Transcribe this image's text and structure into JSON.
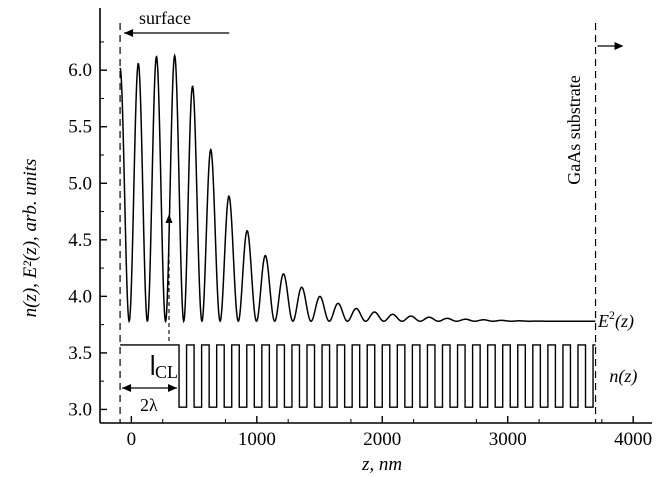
{
  "chart_data": {
    "type": "line",
    "xlabel": "z, nm",
    "ylabel": "n(z), E²(z), arb. units",
    "xlim": [
      -250,
      4150
    ],
    "ylim": [
      2.88,
      6.55
    ],
    "x_ticks": [
      0,
      1000,
      2000,
      3000,
      4000
    ],
    "x_tick_labels": [
      "0",
      "1000",
      "2000",
      "3000",
      "4000"
    ],
    "y_ticks": [
      3.0,
      3.5,
      4.0,
      4.5,
      5.0,
      5.5,
      6.0
    ],
    "y_tick_labels": [
      "3.0",
      "3.5",
      "4.0",
      "4.5",
      "5.0",
      "5.5",
      "6.0"
    ],
    "grid": false,
    "series": [
      {
        "name": "E²(z)",
        "label_parts": {
          "base": "E",
          "sup": "2",
          "tail": "(z)"
        },
        "baseline": 3.78,
        "peaks": [
          [
            -90,
            6.02
          ],
          [
            10,
            6.03
          ],
          [
            150,
            6.12
          ],
          [
            280,
            6.12
          ],
          [
            425,
            6.14
          ],
          [
            570,
            5.5
          ],
          [
            715,
            5.04
          ],
          [
            860,
            4.69
          ],
          [
            1005,
            4.44
          ],
          [
            1150,
            4.26
          ],
          [
            1295,
            4.12
          ],
          [
            1440,
            4.03
          ],
          [
            1585,
            3.96
          ],
          [
            1730,
            3.91
          ],
          [
            1875,
            3.87
          ],
          [
            2020,
            3.85
          ],
          [
            2165,
            3.83
          ],
          [
            2310,
            3.82
          ],
          [
            2455,
            3.81
          ],
          [
            2600,
            3.8
          ],
          [
            2745,
            3.795
          ],
          [
            2890,
            3.79
          ],
          [
            3035,
            3.785
          ],
          [
            3180,
            3.782
          ],
          [
            3700,
            3.78
          ]
        ]
      },
      {
        "name": "n(z)",
        "label_parts": {
          "base": "n",
          "tail": "(z)"
        },
        "type": "step",
        "high": 3.57,
        "low": 3.02,
        "cap_layer_x": [
          -90,
          380
        ],
        "period_nm": 120,
        "period_end_x": 3700
      }
    ],
    "annotations": {
      "surface": "surface",
      "substrate": "GaAs substrate",
      "cl": "CL",
      "two_lambda": "2λ"
    },
    "markers": {
      "surface_x": -90,
      "substrate_x": 3700,
      "cl_x": 300
    }
  }
}
